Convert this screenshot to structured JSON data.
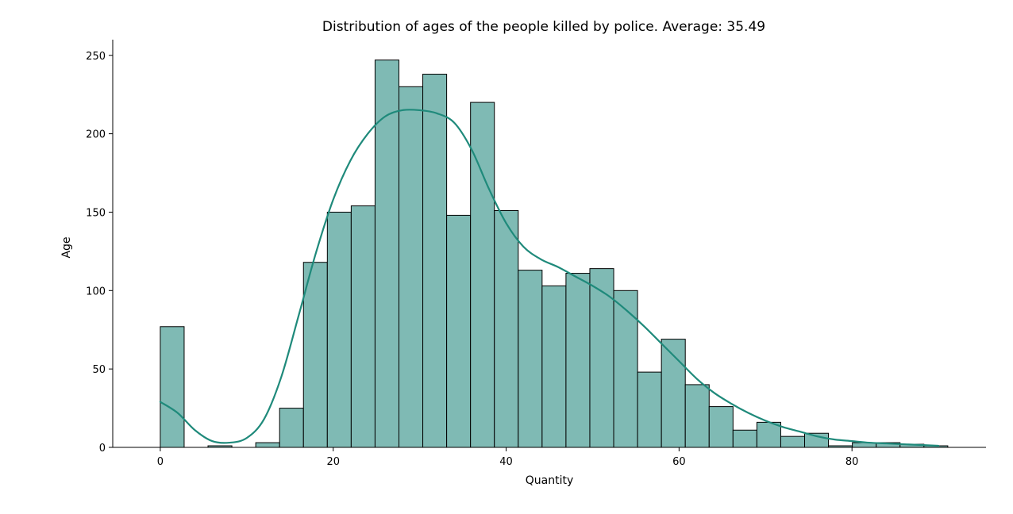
{
  "chart_data": {
    "type": "bar",
    "title": "Distribution of ages of the people killed by police. Average: 35.49",
    "xlabel": "Quantity",
    "ylabel": "Age",
    "xlim": [
      -5.5,
      95.5
    ],
    "ylim": [
      0,
      260
    ],
    "xticks": [
      0,
      20,
      40,
      60,
      80
    ],
    "yticks": [
      0,
      50,
      100,
      150,
      200,
      250
    ],
    "bin_width": 2.76,
    "bins": [
      {
        "x0": 0.0,
        "count": 77
      },
      {
        "x0": 2.76,
        "count": 0
      },
      {
        "x0": 5.52,
        "count": 1
      },
      {
        "x0": 8.28,
        "count": 0
      },
      {
        "x0": 11.04,
        "count": 3
      },
      {
        "x0": 13.8,
        "count": 25
      },
      {
        "x0": 16.56,
        "count": 118
      },
      {
        "x0": 19.32,
        "count": 150
      },
      {
        "x0": 22.08,
        "count": 154
      },
      {
        "x0": 24.84,
        "count": 247
      },
      {
        "x0": 27.6,
        "count": 230
      },
      {
        "x0": 30.36,
        "count": 238
      },
      {
        "x0": 33.12,
        "count": 148
      },
      {
        "x0": 35.88,
        "count": 220
      },
      {
        "x0": 38.64,
        "count": 151
      },
      {
        "x0": 41.4,
        "count": 113
      },
      {
        "x0": 44.16,
        "count": 103
      },
      {
        "x0": 46.92,
        "count": 111
      },
      {
        "x0": 49.68,
        "count": 114
      },
      {
        "x0": 52.44,
        "count": 100
      },
      {
        "x0": 55.2,
        "count": 48
      },
      {
        "x0": 57.96,
        "count": 69
      },
      {
        "x0": 60.72,
        "count": 40
      },
      {
        "x0": 63.48,
        "count": 26
      },
      {
        "x0": 66.24,
        "count": 11
      },
      {
        "x0": 69.0,
        "count": 16
      },
      {
        "x0": 71.76,
        "count": 7
      },
      {
        "x0": 74.52,
        "count": 9
      },
      {
        "x0": 77.28,
        "count": 1
      },
      {
        "x0": 80.04,
        "count": 3
      },
      {
        "x0": 82.8,
        "count": 3
      },
      {
        "x0": 85.56,
        "count": 2
      },
      {
        "x0": 88.32,
        "count": 1
      }
    ],
    "kde": {
      "x": [
        0,
        2,
        4,
        6,
        8,
        10,
        12,
        14,
        16,
        18,
        20,
        22,
        24,
        26,
        28,
        30,
        32,
        34,
        36,
        38,
        40,
        42,
        44,
        46,
        48,
        50,
        52,
        54,
        56,
        58,
        60,
        62,
        64,
        66,
        68,
        70,
        72,
        74,
        76,
        78,
        80,
        82,
        84,
        86,
        88,
        90
      ],
      "y": [
        29,
        22,
        11,
        4,
        3,
        6,
        18,
        45,
        84,
        124,
        158,
        183,
        200,
        211,
        215,
        215,
        213,
        207,
        190,
        165,
        143,
        128,
        120,
        115,
        109,
        103,
        96,
        87,
        77,
        66,
        55,
        44,
        35,
        28,
        22,
        17,
        13,
        10,
        7,
        5,
        4,
        3,
        2.5,
        2,
        1.5,
        1
      ]
    },
    "bar_color": "#7fbab4",
    "line_color": "#1f8a7b",
    "grid": false,
    "legend": "none"
  }
}
